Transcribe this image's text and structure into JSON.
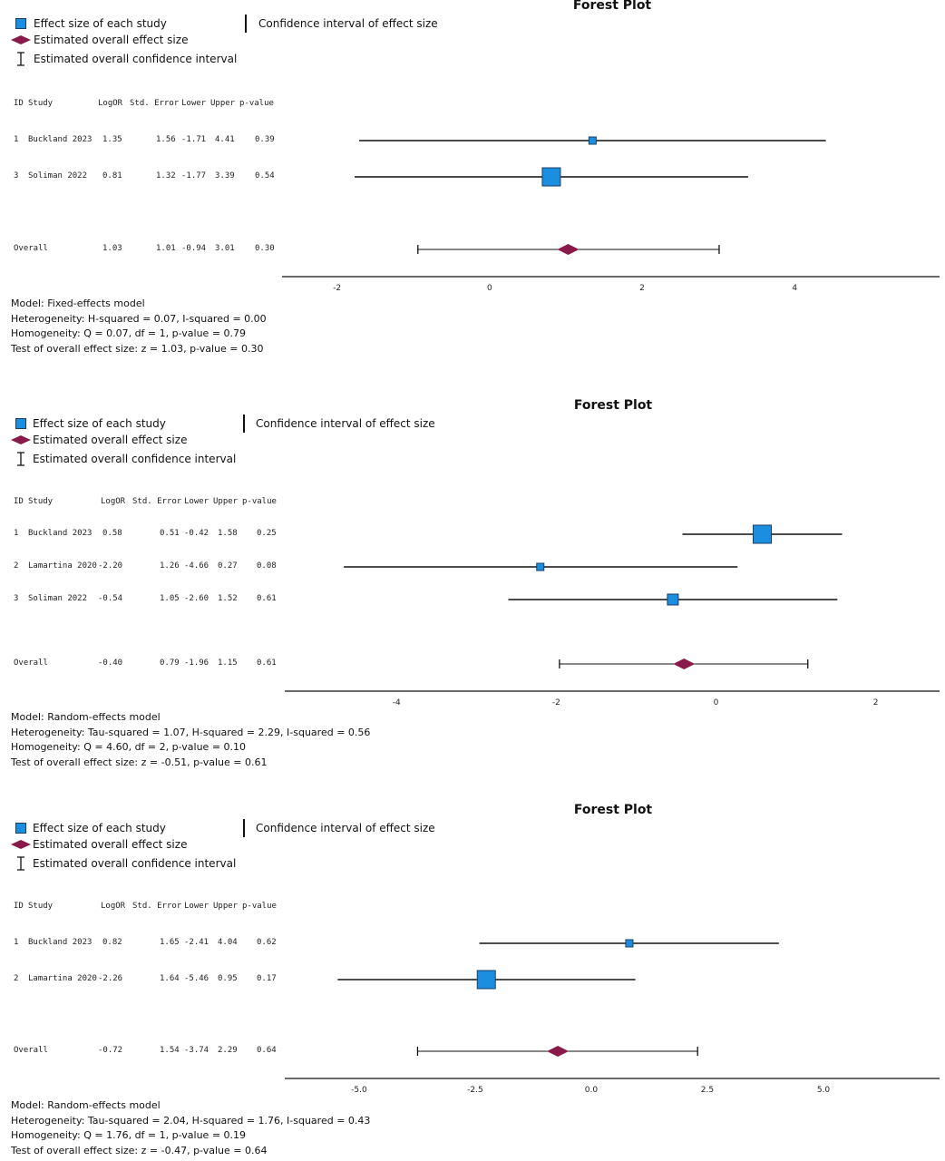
{
  "legend": {
    "study": "Effect size of each study",
    "overall": "Estimated overall effect size",
    "overall_ci": "Estimated overall confidence interval",
    "ci": "Confidence interval of effect size"
  },
  "colors": {
    "study": "#1b8ee0",
    "study_border": "#1c3d66",
    "overall": "#8a1a4a"
  },
  "chart_data": [
    {
      "type": "forest",
      "title": "Forest Plot",
      "columns": [
        "ID",
        "Study",
        "LogOR",
        "Std. Error",
        "Lower",
        "Upper",
        "p-value"
      ],
      "studies": [
        {
          "id": "1",
          "study": "Buckland 2023",
          "estimate": 1.35,
          "se": 1.56,
          "lower": -1.71,
          "upper": 4.41,
          "p": 0.39,
          "size": "small"
        },
        {
          "id": "3",
          "study": "Soliman 2022",
          "estimate": 0.81,
          "se": 1.32,
          "lower": -1.77,
          "upper": 3.39,
          "p": 0.54,
          "size": "large"
        }
      ],
      "overall": {
        "label": "Overall",
        "estimate": 1.03,
        "se": 1.01,
        "lower": -0.94,
        "upper": 3.01,
        "p": 0.3
      },
      "xlim": [
        -2.4,
        5.9
      ],
      "xticks": [
        {
          "v": -2,
          "t": "-2"
        },
        {
          "v": 0,
          "t": "0"
        },
        {
          "v": 2,
          "t": "2"
        },
        {
          "v": 4,
          "t": "4"
        }
      ],
      "model_lines": [
        "Model: Fixed-effects model",
        "Heterogeneity: H-squared = 0.07, I-squared = 0.00",
        "Homogeneity: Q = 0.07, df = 1, p-value = 0.79",
        "Test of overall effect size: z = 1.03, p-value = 0.30"
      ]
    },
    {
      "type": "forest",
      "title": "Forest Plot",
      "columns": [
        "ID",
        "Study",
        "LogOR",
        "Std. Error",
        "Lower",
        "Upper",
        "p-value"
      ],
      "studies": [
        {
          "id": "1",
          "study": "Buckland 2023",
          "estimate": 0.58,
          "se": 0.51,
          "lower": -0.42,
          "upper": 1.58,
          "p": 0.25,
          "size": "large"
        },
        {
          "id": "2",
          "study": "Lamartina 2020",
          "estimate": -2.2,
          "se": 1.26,
          "lower": -4.66,
          "upper": 0.27,
          "p": 0.08,
          "size": "small"
        },
        {
          "id": "3",
          "study": "Soliman 2022",
          "estimate": -0.54,
          "se": 1.05,
          "lower": -2.6,
          "upper": 1.52,
          "p": 0.61,
          "size": "medium"
        }
      ],
      "overall": {
        "label": "Overall",
        "estimate": -0.4,
        "se": 0.79,
        "lower": -1.96,
        "upper": 1.15,
        "p": 0.61
      },
      "xlim": [
        -5.4,
        2.8
      ],
      "xticks": [
        {
          "v": -4,
          "t": "-4"
        },
        {
          "v": -2,
          "t": "-2"
        },
        {
          "v": 0,
          "t": "0"
        },
        {
          "v": 2,
          "t": "2"
        }
      ],
      "model_lines": [
        "Model: Random-effects model",
        "Heterogeneity: Tau-squared = 1.07, H-squared = 2.29, I-squared = 0.56",
        "Homogeneity: Q = 4.60, df = 2, p-value = 0.10",
        "Test of overall effect size: z = -0.51, p-value = 0.61"
      ]
    },
    {
      "type": "forest",
      "title": "Forest Plot",
      "columns": [
        "ID",
        "Study",
        "LogOR",
        "Std. Error",
        "Lower",
        "Upper",
        "p-value"
      ],
      "studies": [
        {
          "id": "1",
          "study": "Buckland 2023",
          "estimate": 0.82,
          "se": 1.65,
          "lower": -2.41,
          "upper": 4.04,
          "p": 0.62,
          "size": "small"
        },
        {
          "id": "2",
          "study": "Lamartina 2020",
          "estimate": -2.26,
          "se": 1.64,
          "lower": -5.46,
          "upper": 0.95,
          "p": 0.17,
          "size": "large"
        }
      ],
      "overall": {
        "label": "Overall",
        "estimate": -0.72,
        "se": 1.54,
        "lower": -3.74,
        "upper": 2.29,
        "p": 0.64
      },
      "xlim": [
        -6.6,
        7.5
      ],
      "xticks": [
        {
          "v": -5,
          "t": "-5.0"
        },
        {
          "v": -2.5,
          "t": "-2.5"
        },
        {
          "v": 0,
          "t": "0.0"
        },
        {
          "v": 2.5,
          "t": "2.5"
        },
        {
          "v": 5,
          "t": "5.0"
        }
      ],
      "model_lines": [
        "Model: Random-effects model",
        "Heterogeneity: Tau-squared = 2.04, H-squared = 1.76, I-squared = 0.43",
        "Homogeneity: Q = 1.76, df = 1, p-value = 0.19",
        "Test of overall effect size: z = -0.47, p-value = 0.64"
      ]
    }
  ]
}
